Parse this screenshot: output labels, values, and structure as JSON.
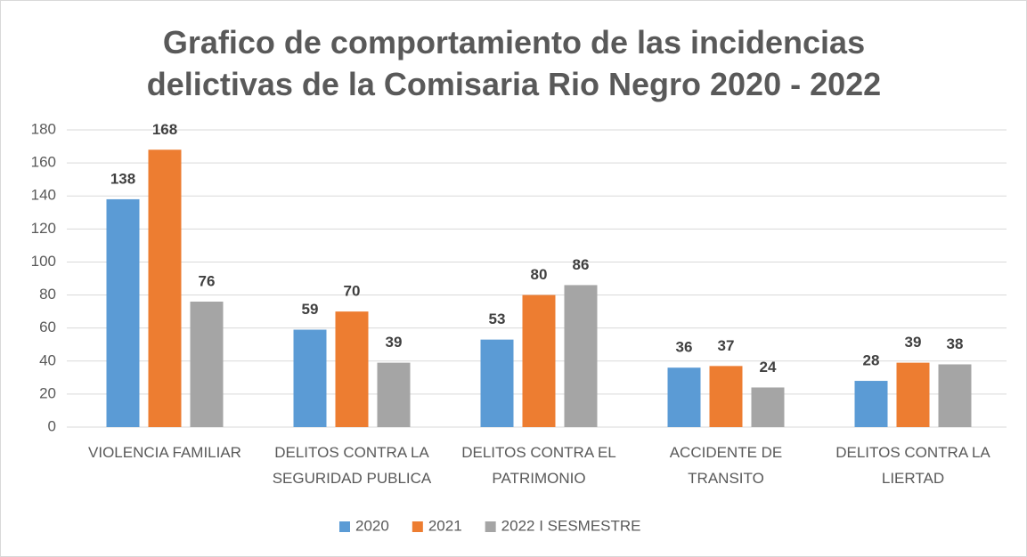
{
  "chart_data": {
    "type": "bar",
    "title": "Grafico de comportamiento de las incidencias delictivas de la Comisaria Rio Negro 2020 - 2022",
    "categories": [
      "VIOLENCIA FAMILIAR",
      "DELITOS CONTRA LA SEGURIDAD PUBLICA",
      "DELITOS CONTRA EL PATRIMONIO",
      "ACCIDENTE DE TRANSITO",
      "DELITOS CONTRA LA LIERTAD"
    ],
    "series": [
      {
        "name": "2020",
        "color": "#5b9bd5",
        "values": [
          138,
          59,
          53,
          36,
          28
        ]
      },
      {
        "name": "2021",
        "color": "#ed7d31",
        "values": [
          168,
          70,
          80,
          37,
          39
        ]
      },
      {
        "name": "2022 I SESMESTRE",
        "color": "#a5a5a5",
        "values": [
          76,
          39,
          86,
          24,
          38
        ]
      }
    ],
    "ylim": [
      0,
      180
    ],
    "yticks": [
      0,
      20,
      40,
      60,
      80,
      100,
      120,
      140,
      160,
      180
    ],
    "grid": true,
    "legend": "bottom"
  }
}
